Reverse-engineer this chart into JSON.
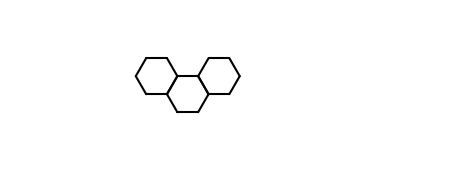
{
  "figsize": [
    4.58,
    1.88
  ],
  "dpi": 100,
  "background": "#ffffff",
  "line_color": "#000000",
  "lw": 1.5
}
